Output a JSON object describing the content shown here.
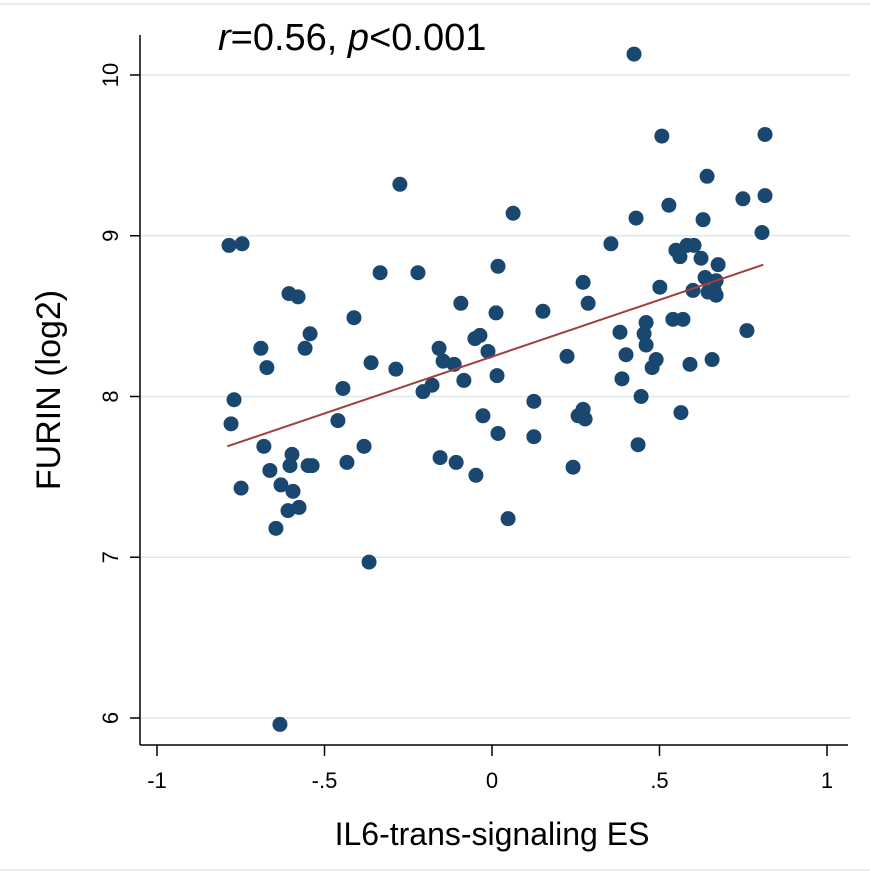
{
  "chart_data": {
    "type": "scatter",
    "annotation": [
      {
        "text": "r",
        "italic": true
      },
      {
        "text": "=0.56, ",
        "italic": false
      },
      {
        "text": "p",
        "italic": true
      },
      {
        "text": "<0.001",
        "italic": false
      }
    ],
    "x_label": "IL6-trans-signaling ES",
    "y_label": "FURIN (log2)",
    "xlim": [
      -1,
      1
    ],
    "ylim": [
      6,
      10
    ],
    "xticks": [
      -1,
      {
        "value": -0.5,
        "label": "-.5"
      },
      0,
      {
        "value": 0.5,
        "label": ".5"
      },
      1
    ],
    "yticks": [
      6,
      7,
      8,
      9,
      10
    ],
    "grid": true,
    "color": "#1a476f",
    "x": [
      -0.785,
      -0.746,
      -0.77,
      -0.779,
      -0.749,
      -0.69,
      -0.672,
      -0.681,
      -0.663,
      -0.645,
      -0.63,
      -0.633,
      -0.606,
      -0.579,
      -0.597,
      -0.603,
      -0.594,
      -0.609,
      -0.576,
      -0.558,
      -0.543,
      -0.549,
      -0.537,
      -0.46,
      -0.445,
      -0.433,
      -0.412,
      -0.334,
      -0.382,
      -0.367,
      -0.361,
      -0.287,
      -0.275,
      -0.221,
      -0.206,
      -0.179,
      -0.158,
      -0.146,
      -0.155,
      -0.113,
      -0.107,
      -0.093,
      -0.084,
      -0.051,
      -0.036,
      -0.048,
      -0.027,
      -0.012,
      0.012,
      0.018,
      0.015,
      0.018,
      0.063,
      0.048,
      0.152,
      0.125,
      0.125,
      0.224,
      0.242,
      0.257,
      0.272,
      0.272,
      0.278,
      0.287,
      0.355,
      0.382,
      0.388,
      0.4,
      0.424,
      0.43,
      0.436,
      0.445,
      0.454,
      0.46,
      0.46,
      0.478,
      0.49,
      0.501,
      0.507,
      0.528,
      0.54,
      0.549,
      0.564,
      0.57,
      0.561,
      0.582,
      0.591,
      0.603,
      0.6,
      0.624,
      0.63,
      0.642,
      0.657,
      0.636,
      0.645,
      0.663,
      0.669,
      0.669,
      0.675,
      0.749,
      0.761,
      0.806,
      0.815,
      0.815
    ],
    "values": [
      8.94,
      8.95,
      7.98,
      7.83,
      7.43,
      8.3,
      8.18,
      7.69,
      7.54,
      7.18,
      7.45,
      5.96,
      8.64,
      8.62,
      7.64,
      7.57,
      7.41,
      7.29,
      7.31,
      8.3,
      8.39,
      7.57,
      7.57,
      7.85,
      8.05,
      7.59,
      8.49,
      8.77,
      7.69,
      6.97,
      8.21,
      8.17,
      9.32,
      8.77,
      8.03,
      8.07,
      8.3,
      8.22,
      7.62,
      8.2,
      7.59,
      8.58,
      8.1,
      8.36,
      8.38,
      7.51,
      7.88,
      8.28,
      8.52,
      8.81,
      8.13,
      7.77,
      9.14,
      7.24,
      8.53,
      7.97,
      7.75,
      8.25,
      7.56,
      7.88,
      8.71,
      7.92,
      7.86,
      8.58,
      8.95,
      8.4,
      8.11,
      8.26,
      10.13,
      9.11,
      7.7,
      8.0,
      8.39,
      8.46,
      8.32,
      8.18,
      8.23,
      8.68,
      9.62,
      9.19,
      8.48,
      8.91,
      7.9,
      8.48,
      8.87,
      8.94,
      8.2,
      8.94,
      8.66,
      8.86,
      9.1,
      9.37,
      8.23,
      8.74,
      8.65,
      8.66,
      8.63,
      8.72,
      8.82,
      9.23,
      8.41,
      9.02,
      9.25,
      9.63
    ],
    "fit_line": {
      "x": [
        -0.79,
        0.81
      ],
      "y": [
        7.69,
        8.82
      ],
      "color": "#a0403c"
    }
  }
}
